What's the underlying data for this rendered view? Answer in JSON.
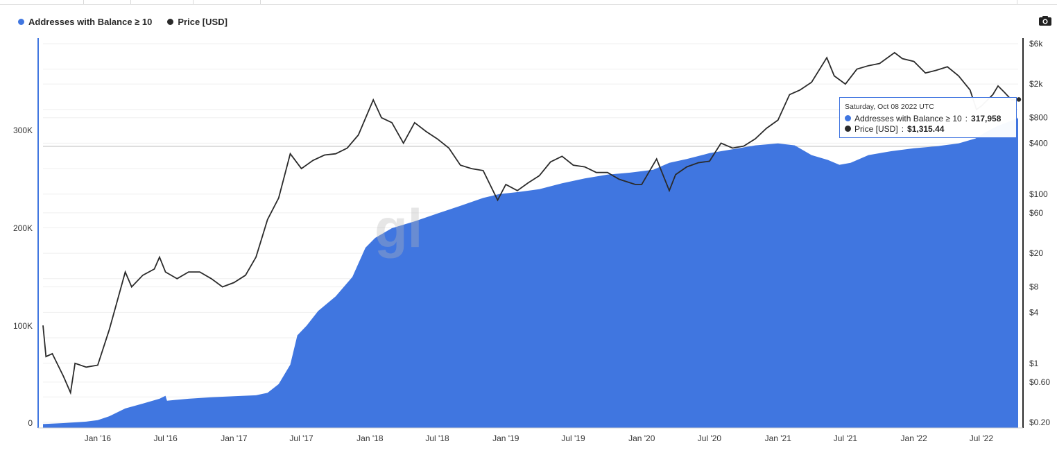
{
  "legend": [
    {
      "label": "Addresses with Balance ≥ 10",
      "color": "#4076e0"
    },
    {
      "label": "Price [USD]",
      "color": "#2a2a2a"
    }
  ],
  "toolbar": {
    "camera_icon": "camera-icon"
  },
  "tooltip": {
    "date": "Saturday, Oct 08 2022 UTC",
    "series1_label": "Addresses with Balance ≥ 10",
    "series1_value": "317,958",
    "series2_label": "Price [USD]",
    "series2_value": "$1,315.44"
  },
  "watermark": "gl",
  "chart_data": {
    "type": "area",
    "y_ticks": [
      "0",
      "100K",
      "200K",
      "300K"
    ],
    "y_ticks_values": [
      0,
      100000,
      200000,
      300000
    ],
    "y2_ticks": [
      "$6k",
      "$2k",
      "$800",
      "$400",
      "$100",
      "$60",
      "$20",
      "$8",
      "$4",
      "$1",
      "$0.60",
      "$0.20"
    ],
    "y2_ticks_values": [
      6000,
      2000,
      800,
      400,
      100,
      60,
      20,
      8,
      4,
      1,
      0.6,
      0.2
    ],
    "y2_scale": "log",
    "x_ticks": [
      "Jan '16",
      "Jul '16",
      "Jan '17",
      "Jul '17",
      "Jan '18",
      "Jul '18",
      "Jan '19",
      "Jul '19",
      "Jan '20",
      "Jul '20",
      "Jan '21",
      "Jul '21",
      "Jan '22",
      "Jul '22"
    ],
    "x_ticks_dates": [
      "2016-01-01",
      "2016-07-01",
      "2017-01-01",
      "2017-07-01",
      "2018-01-01",
      "2018-07-01",
      "2019-01-01",
      "2019-07-01",
      "2020-01-01",
      "2020-07-01",
      "2021-01-01",
      "2021-07-01",
      "2022-01-01",
      "2022-07-01"
    ],
    "ylim": [
      0,
      400000
    ],
    "series": [
      {
        "name": "Addresses with Balance ≥ 10",
        "axis": "left",
        "color": "#4076e0",
        "points": [
          [
            "2015-08-07",
            4000
          ],
          [
            "2015-10-01",
            5000
          ],
          [
            "2015-12-01",
            6500
          ],
          [
            "2016-01-01",
            8000
          ],
          [
            "2016-02-01",
            12000
          ],
          [
            "2016-03-15",
            20000
          ],
          [
            "2016-05-01",
            25000
          ],
          [
            "2016-06-15",
            30000
          ],
          [
            "2016-07-01",
            33000
          ],
          [
            "2016-07-05",
            28000
          ],
          [
            "2016-09-01",
            30000
          ],
          [
            "2016-11-01",
            31500
          ],
          [
            "2017-01-01",
            32500
          ],
          [
            "2017-03-01",
            33500
          ],
          [
            "2017-04-01",
            36000
          ],
          [
            "2017-05-01",
            45000
          ],
          [
            "2017-06-01",
            65000
          ],
          [
            "2017-06-20",
            95000
          ],
          [
            "2017-07-15",
            105000
          ],
          [
            "2017-08-15",
            120000
          ],
          [
            "2017-10-01",
            135000
          ],
          [
            "2017-11-15",
            155000
          ],
          [
            "2017-12-20",
            185000
          ],
          [
            "2018-01-15",
            195000
          ],
          [
            "2018-03-01",
            205000
          ],
          [
            "2018-05-01",
            212000
          ],
          [
            "2018-07-01",
            220000
          ],
          [
            "2018-09-01",
            228000
          ],
          [
            "2018-11-01",
            236000
          ],
          [
            "2018-12-15",
            240000
          ],
          [
            "2019-02-01",
            242000
          ],
          [
            "2019-04-01",
            245000
          ],
          [
            "2019-06-01",
            251000
          ],
          [
            "2019-08-01",
            256000
          ],
          [
            "2019-10-01",
            260000
          ],
          [
            "2019-12-01",
            262000
          ],
          [
            "2020-02-01",
            265000
          ],
          [
            "2020-03-15",
            272000
          ],
          [
            "2020-05-01",
            276000
          ],
          [
            "2020-07-01",
            282000
          ],
          [
            "2020-09-01",
            286000
          ],
          [
            "2020-11-01",
            290000
          ],
          [
            "2021-01-01",
            292000
          ],
          [
            "2021-02-15",
            290000
          ],
          [
            "2021-04-01",
            280000
          ],
          [
            "2021-05-15",
            275000
          ],
          [
            "2021-06-15",
            270000
          ],
          [
            "2021-07-15",
            272000
          ],
          [
            "2021-09-01",
            280000
          ],
          [
            "2021-11-01",
            284000
          ],
          [
            "2022-01-01",
            287000
          ],
          [
            "2022-03-01",
            289000
          ],
          [
            "2022-05-01",
            292000
          ],
          [
            "2022-06-15",
            297000
          ],
          [
            "2022-07-15",
            304000
          ],
          [
            "2022-08-15",
            310000
          ],
          [
            "2022-10-08",
            317958
          ]
        ]
      },
      {
        "name": "Price [USD]",
        "axis": "right",
        "color": "#2a2a2a",
        "points": [
          [
            "2015-08-07",
            2.8
          ],
          [
            "2015-08-15",
            1.2
          ],
          [
            "2015-09-01",
            1.3
          ],
          [
            "2015-10-01",
            0.7
          ],
          [
            "2015-10-20",
            0.45
          ],
          [
            "2015-11-01",
            1.0
          ],
          [
            "2015-12-01",
            0.9
          ],
          [
            "2016-01-01",
            0.95
          ],
          [
            "2016-02-01",
            2.5
          ],
          [
            "2016-02-20",
            5
          ],
          [
            "2016-03-15",
            12
          ],
          [
            "2016-04-01",
            8
          ],
          [
            "2016-05-01",
            11
          ],
          [
            "2016-06-01",
            13
          ],
          [
            "2016-06-15",
            18
          ],
          [
            "2016-07-01",
            12
          ],
          [
            "2016-08-01",
            10
          ],
          [
            "2016-09-01",
            12
          ],
          [
            "2016-10-01",
            12
          ],
          [
            "2016-11-01",
            10
          ],
          [
            "2016-12-01",
            8
          ],
          [
            "2017-01-01",
            9
          ],
          [
            "2017-02-01",
            11
          ],
          [
            "2017-03-01",
            18
          ],
          [
            "2017-04-01",
            50
          ],
          [
            "2017-05-01",
            90
          ],
          [
            "2017-06-01",
            300
          ],
          [
            "2017-07-01",
            200
          ],
          [
            "2017-08-01",
            250
          ],
          [
            "2017-09-01",
            290
          ],
          [
            "2017-10-01",
            300
          ],
          [
            "2017-11-01",
            350
          ],
          [
            "2017-12-01",
            500
          ],
          [
            "2018-01-10",
            1300
          ],
          [
            "2018-02-01",
            800
          ],
          [
            "2018-03-01",
            700
          ],
          [
            "2018-04-01",
            400
          ],
          [
            "2018-05-01",
            700
          ],
          [
            "2018-06-01",
            550
          ],
          [
            "2018-07-01",
            450
          ],
          [
            "2018-08-01",
            350
          ],
          [
            "2018-09-01",
            220
          ],
          [
            "2018-10-01",
            200
          ],
          [
            "2018-11-01",
            190
          ],
          [
            "2018-12-10",
            85
          ],
          [
            "2019-01-01",
            130
          ],
          [
            "2019-02-01",
            110
          ],
          [
            "2019-03-01",
            135
          ],
          [
            "2019-04-01",
            165
          ],
          [
            "2019-05-01",
            240
          ],
          [
            "2019-06-01",
            280
          ],
          [
            "2019-07-01",
            220
          ],
          [
            "2019-08-01",
            210
          ],
          [
            "2019-09-01",
            180
          ],
          [
            "2019-10-01",
            180
          ],
          [
            "2019-11-01",
            150
          ],
          [
            "2019-12-15",
            130
          ],
          [
            "2020-01-01",
            130
          ],
          [
            "2020-02-10",
            260
          ],
          [
            "2020-03-15",
            110
          ],
          [
            "2020-04-01",
            170
          ],
          [
            "2020-05-01",
            210
          ],
          [
            "2020-06-01",
            235
          ],
          [
            "2020-07-01",
            245
          ],
          [
            "2020-08-01",
            400
          ],
          [
            "2020-09-01",
            350
          ],
          [
            "2020-10-01",
            370
          ],
          [
            "2020-11-01",
            450
          ],
          [
            "2020-12-01",
            600
          ],
          [
            "2021-01-01",
            750
          ],
          [
            "2021-02-01",
            1500
          ],
          [
            "2021-03-01",
            1700
          ],
          [
            "2021-04-01",
            2100
          ],
          [
            "2021-05-12",
            4100
          ],
          [
            "2021-06-01",
            2500
          ],
          [
            "2021-07-01",
            2000
          ],
          [
            "2021-08-01",
            3000
          ],
          [
            "2021-09-01",
            3300
          ],
          [
            "2021-10-01",
            3500
          ],
          [
            "2021-11-10",
            4700
          ],
          [
            "2021-12-01",
            4000
          ],
          [
            "2022-01-01",
            3700
          ],
          [
            "2022-02-01",
            2700
          ],
          [
            "2022-03-01",
            2900
          ],
          [
            "2022-04-01",
            3200
          ],
          [
            "2022-05-01",
            2500
          ],
          [
            "2022-06-01",
            1700
          ],
          [
            "2022-06-18",
            1000
          ],
          [
            "2022-07-01",
            1100
          ],
          [
            "2022-08-01",
            1500
          ],
          [
            "2022-08-15",
            1900
          ],
          [
            "2022-09-01",
            1600
          ],
          [
            "2022-09-20",
            1300
          ],
          [
            "2022-10-08",
            1315.44
          ]
        ]
      }
    ]
  }
}
